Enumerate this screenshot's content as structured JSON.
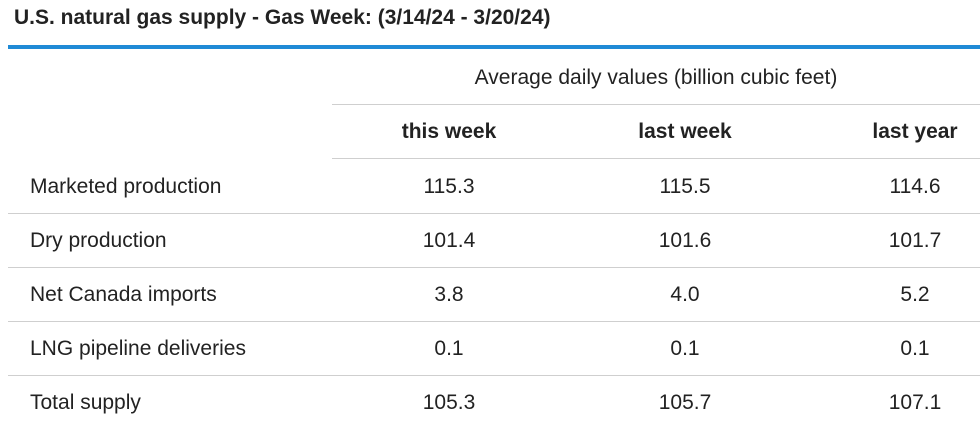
{
  "header": {
    "title": "U.S. natural gas supply - Gas Week: (3/14/24 - 3/20/24)"
  },
  "table": {
    "group_header": "Average daily values (billion cubic feet)",
    "columns": [
      "this week",
      "last week",
      "last year"
    ],
    "rows": [
      [
        "Marketed production",
        "115.3",
        "115.5",
        "114.6"
      ],
      [
        "Dry production",
        "101.4",
        "101.6",
        "101.7"
      ],
      [
        "Net Canada imports",
        "3.8",
        "4.0",
        "5.2"
      ],
      [
        "LNG pipeline deliveries",
        "0.1",
        "0.1",
        "0.1"
      ],
      [
        "Total supply",
        "105.3",
        "105.7",
        "107.1"
      ]
    ]
  }
}
